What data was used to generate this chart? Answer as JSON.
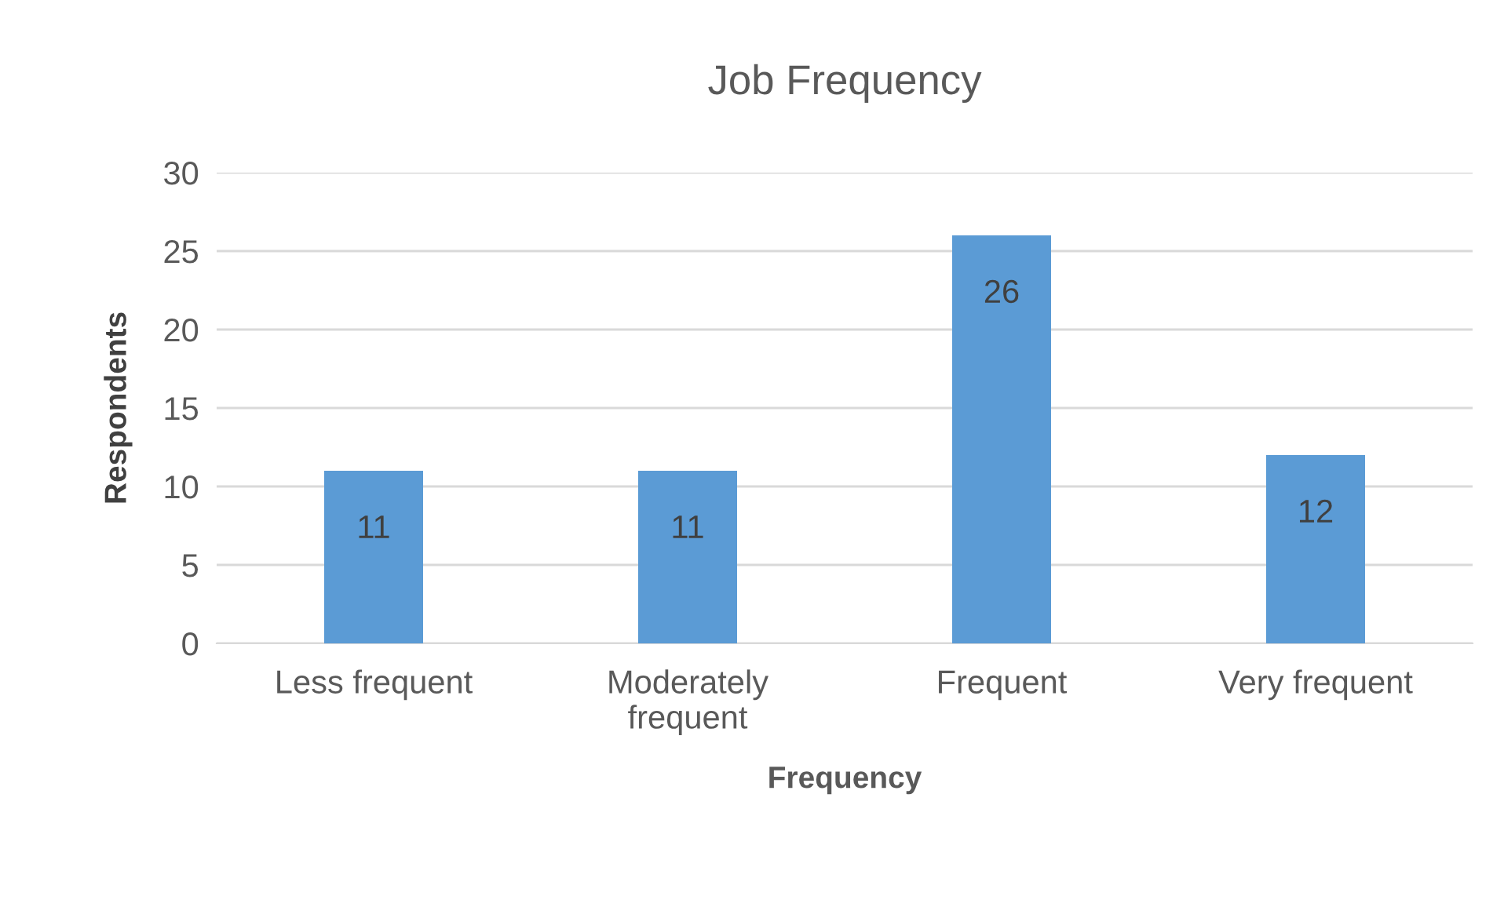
{
  "chart_data": {
    "type": "bar",
    "title": "Job Frequency",
    "xlabel": "Frequency",
    "ylabel": "Respondents",
    "categories": [
      "Less frequent",
      "Moderately\nfrequent",
      "Frequent",
      "Very frequent"
    ],
    "values": [
      11,
      11,
      26,
      12
    ],
    "color": "#5b9bd5",
    "ylim": [
      0,
      30
    ],
    "yticks": [
      0,
      5,
      10,
      15,
      20,
      25,
      30
    ],
    "grid": "y",
    "data_labels": true
  }
}
